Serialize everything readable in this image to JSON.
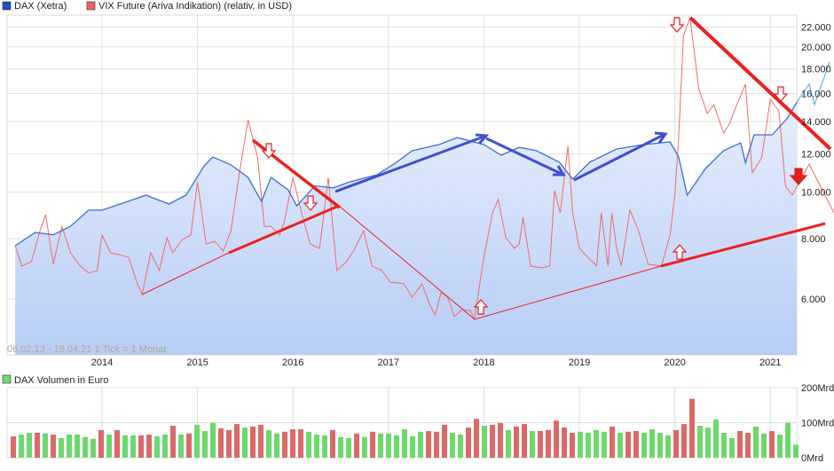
{
  "chart_data": [
    {
      "type": "line",
      "title": "",
      "legend": [
        {
          "name": "DAX (Xetra)",
          "color": "#1f52c4"
        },
        {
          "name": "VIX Future (Ariva Indikation) (relativ, in USD)",
          "color": "#f06060"
        }
      ],
      "legend_position": "top-left",
      "info_text": "06.02.13 - 18.04.21   1 Tick = 1 Monat",
      "yscale": "log",
      "ylim": [
        5000,
        23500
      ],
      "xlim": [
        2013.08,
        2021.3
      ],
      "x_ticks": [
        "2014",
        "2015",
        "2016",
        "2017",
        "2018",
        "2019",
        "2020",
        "2021"
      ],
      "y_ticks": [
        {
          "value": 6000,
          "label": "6.000"
        },
        {
          "value": 8000,
          "label": "8.000"
        },
        {
          "value": 10000,
          "label": "10.000"
        },
        {
          "value": 12000,
          "label": "12.000"
        },
        {
          "value": 14000,
          "label": "14.000"
        },
        {
          "value": 16000,
          "label": "16.000"
        },
        {
          "value": 18000,
          "label": "18.000"
        },
        {
          "value": 20000,
          "label": "20.000"
        },
        {
          "value": 22000,
          "label": "22.000"
        }
      ],
      "grid": true,
      "series": [
        {
          "name": "DAX (Xetra)",
          "points": [
            [
              2013.09,
              7735
            ],
            [
              2013.3,
              8245
            ],
            [
              2013.49,
              8150
            ],
            [
              2013.67,
              8490
            ],
            [
              2013.86,
              9170
            ],
            [
              2014.0,
              9168
            ],
            [
              2014.19,
              9440
            ],
            [
              2014.46,
              9850
            ],
            [
              2014.7,
              9440
            ],
            [
              2014.88,
              9850
            ],
            [
              2015.07,
              11330
            ],
            [
              2015.16,
              11820
            ],
            [
              2015.35,
              11380
            ],
            [
              2015.53,
              10720
            ],
            [
              2015.67,
              9560
            ],
            [
              2015.77,
              10720
            ],
            [
              2015.95,
              10100
            ],
            [
              2016.04,
              9360
            ],
            [
              2016.23,
              10300
            ],
            [
              2016.42,
              10200
            ],
            [
              2016.6,
              10500
            ],
            [
              2016.88,
              10860
            ],
            [
              2017.07,
              11470
            ],
            [
              2017.25,
              12180
            ],
            [
              2017.53,
              12540
            ],
            [
              2017.72,
              12970
            ],
            [
              2018.0,
              12540
            ],
            [
              2018.18,
              11920
            ],
            [
              2018.37,
              12380
            ],
            [
              2018.55,
              12180
            ],
            [
              2018.79,
              11530
            ],
            [
              2018.93,
              10630
            ],
            [
              2019.11,
              11530
            ],
            [
              2019.39,
              12280
            ],
            [
              2019.67,
              12540
            ],
            [
              2019.95,
              12700
            ],
            [
              2020.04,
              11820
            ],
            [
              2020.13,
              9850
            ],
            [
              2020.32,
              11180
            ],
            [
              2020.51,
              12180
            ],
            [
              2020.69,
              12650
            ],
            [
              2020.74,
              11500
            ],
            [
              2020.83,
              13140
            ],
            [
              2021.02,
              13140
            ],
            [
              2021.18,
              14240
            ],
            [
              2021.28,
              15370
            ]
          ]
        },
        {
          "name": "VIX Future (Ariva Indikation) (relativ, in USD)",
          "points": [
            [
              2013.09,
              7735
            ],
            [
              2013.16,
              7020
            ],
            [
              2013.26,
              7170
            ],
            [
              2013.35,
              8310
            ],
            [
              2013.41,
              8970
            ],
            [
              2013.49,
              7080
            ],
            [
              2013.58,
              8490
            ],
            [
              2013.67,
              7480
            ],
            [
              2013.77,
              7020
            ],
            [
              2013.86,
              6790
            ],
            [
              2013.95,
              6870
            ],
            [
              2014.0,
              8140
            ],
            [
              2014.09,
              7480
            ],
            [
              2014.19,
              7410
            ],
            [
              2014.28,
              7320
            ],
            [
              2014.37,
              6450
            ],
            [
              2014.42,
              6130
            ],
            [
              2014.51,
              7480
            ],
            [
              2014.6,
              6870
            ],
            [
              2014.68,
              8040
            ],
            [
              2014.74,
              7480
            ],
            [
              2014.84,
              7970
            ],
            [
              2014.93,
              8140
            ],
            [
              2015.0,
              10500
            ],
            [
              2015.09,
              7800
            ],
            [
              2015.18,
              7900
            ],
            [
              2015.27,
              7540
            ],
            [
              2015.35,
              8310
            ],
            [
              2015.44,
              10950
            ],
            [
              2015.53,
              14120
            ],
            [
              2015.63,
              11770
            ],
            [
              2015.7,
              8490
            ],
            [
              2015.77,
              8490
            ],
            [
              2015.86,
              8140
            ],
            [
              2015.91,
              8670
            ],
            [
              2016.0,
              10720
            ],
            [
              2016.09,
              9050
            ],
            [
              2016.18,
              7800
            ],
            [
              2016.28,
              7640
            ],
            [
              2016.37,
              10720
            ],
            [
              2016.46,
              6870
            ],
            [
              2016.56,
              7170
            ],
            [
              2016.65,
              7640
            ],
            [
              2016.74,
              8310
            ],
            [
              2016.83,
              7020
            ],
            [
              2016.93,
              6870
            ],
            [
              2017.02,
              6500
            ],
            [
              2017.16,
              6450
            ],
            [
              2017.25,
              6050
            ],
            [
              2017.35,
              6450
            ],
            [
              2017.44,
              5800
            ],
            [
              2017.49,
              5560
            ],
            [
              2017.55,
              6180
            ],
            [
              2017.62,
              6050
            ],
            [
              2017.69,
              5520
            ],
            [
              2017.76,
              5680
            ],
            [
              2017.86,
              5680
            ],
            [
              2017.9,
              5440
            ],
            [
              2018.0,
              7320
            ],
            [
              2018.09,
              9050
            ],
            [
              2018.15,
              9650
            ],
            [
              2018.23,
              8040
            ],
            [
              2018.32,
              7640
            ],
            [
              2018.37,
              7800
            ],
            [
              2018.41,
              8860
            ],
            [
              2018.49,
              7020
            ],
            [
              2018.6,
              6960
            ],
            [
              2018.69,
              7020
            ],
            [
              2018.74,
              10060
            ],
            [
              2018.8,
              9050
            ],
            [
              2018.88,
              12440
            ],
            [
              2018.93,
              9050
            ],
            [
              2019.0,
              7640
            ],
            [
              2019.09,
              7320
            ],
            [
              2019.18,
              7020
            ],
            [
              2019.23,
              9050
            ],
            [
              2019.3,
              7020
            ],
            [
              2019.34,
              9050
            ],
            [
              2019.39,
              7640
            ],
            [
              2019.44,
              7020
            ],
            [
              2019.53,
              9168
            ],
            [
              2019.62,
              8310
            ],
            [
              2019.72,
              7080
            ],
            [
              2019.86,
              7020
            ],
            [
              2019.95,
              8140
            ],
            [
              2020.0,
              9850
            ],
            [
              2020.04,
              12970
            ],
            [
              2020.09,
              21110
            ],
            [
              2020.16,
              22980
            ],
            [
              2020.25,
              16380
            ],
            [
              2020.34,
              14550
            ],
            [
              2020.41,
              15170
            ],
            [
              2020.51,
              13250
            ],
            [
              2020.57,
              13830
            ],
            [
              2020.65,
              15170
            ],
            [
              2020.74,
              16740
            ],
            [
              2020.81,
              10950
            ],
            [
              2020.91,
              11770
            ],
            [
              2021.0,
              15560
            ],
            [
              2021.09,
              14730
            ],
            [
              2021.16,
              10280
            ],
            [
              2021.23,
              9850
            ]
          ]
        }
      ]
    },
    {
      "type": "bar",
      "legend": [
        {
          "name": "DAX Volumen in Euro",
          "color": "#6cd96a"
        }
      ],
      "ylabel": "Mrd",
      "ylim": [
        0,
        200
      ],
      "y_ticks": [
        {
          "value": 0,
          "label": "0Mrd"
        },
        {
          "value": 100,
          "label": "100Mrd"
        },
        {
          "value": 200,
          "label": "200Mrd"
        }
      ],
      "up_color": "#6cd96a",
      "down_color": "#dd6868",
      "values": [
        61,
        66,
        71,
        71,
        69,
        66,
        56,
        66,
        66,
        59,
        54,
        79,
        66,
        79,
        64,
        64,
        64,
        66,
        61,
        66,
        91,
        66,
        69,
        94,
        76,
        99,
        84,
        79,
        96,
        86,
        89,
        94,
        79,
        69,
        74,
        81,
        81,
        74,
        66,
        64,
        79,
        59,
        56,
        69,
        59,
        74,
        69,
        69,
        64,
        81,
        61,
        74,
        76,
        74,
        94,
        71,
        66,
        86,
        111,
        91,
        94,
        99,
        79,
        89,
        96,
        76,
        76,
        79,
        106,
        86,
        71,
        74,
        71,
        79,
        74,
        89,
        71,
        74,
        76,
        71,
        81,
        71,
        64,
        79,
        96,
        168,
        91,
        86,
        109,
        71,
        56,
        76,
        71,
        89,
        69,
        76,
        66,
        99,
        37
      ],
      "direction": "DUUDUDUUUUUDUDUUDDUUDUDUUUDDDUDDUUDDDUUUDUUDUDUUUUUUDDDUUDDUDDUDDUDDDDDUUUUDUDDUUUUDDDUUUUUDDUUDUUU"
    }
  ]
}
